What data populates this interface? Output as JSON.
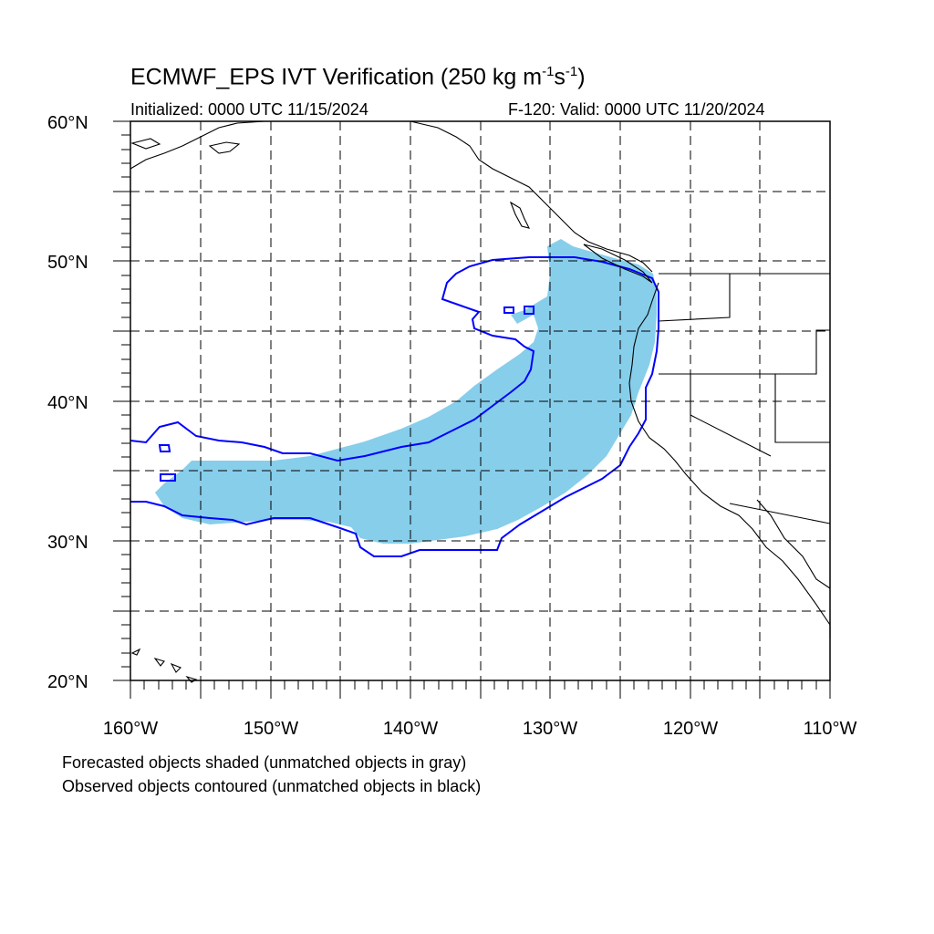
{
  "title": {
    "main": "ECMWF_EPS IVT Verification (250 kg m",
    "exp1": "-1",
    "mid": "s",
    "exp2": "-1",
    "end": ")"
  },
  "subtitle": {
    "left": "Initialized: 0000 UTC 11/15/2024",
    "right": "F-120: Valid: 0000 UTC 11/20/2024"
  },
  "axes": {
    "lat_labels": [
      "60°N",
      "50°N",
      "40°N",
      "30°N",
      "20°N"
    ],
    "lon_labels": [
      "160°W",
      "150°W",
      "140°W",
      "130°W",
      "120°W",
      "110°W"
    ],
    "lat_range": [
      20,
      60
    ],
    "lon_range": [
      -160,
      -110
    ],
    "grid": true
  },
  "legend": {
    "line1": "Forecasted objects shaded (unmatched objects in gray)",
    "line2": "Observed objects contoured (unmatched objects in black)"
  },
  "colors": {
    "forecast_fill": "#87CEEB",
    "observed_contour": "#0000FF",
    "coastline": "#000000",
    "grid": "#000000"
  }
}
